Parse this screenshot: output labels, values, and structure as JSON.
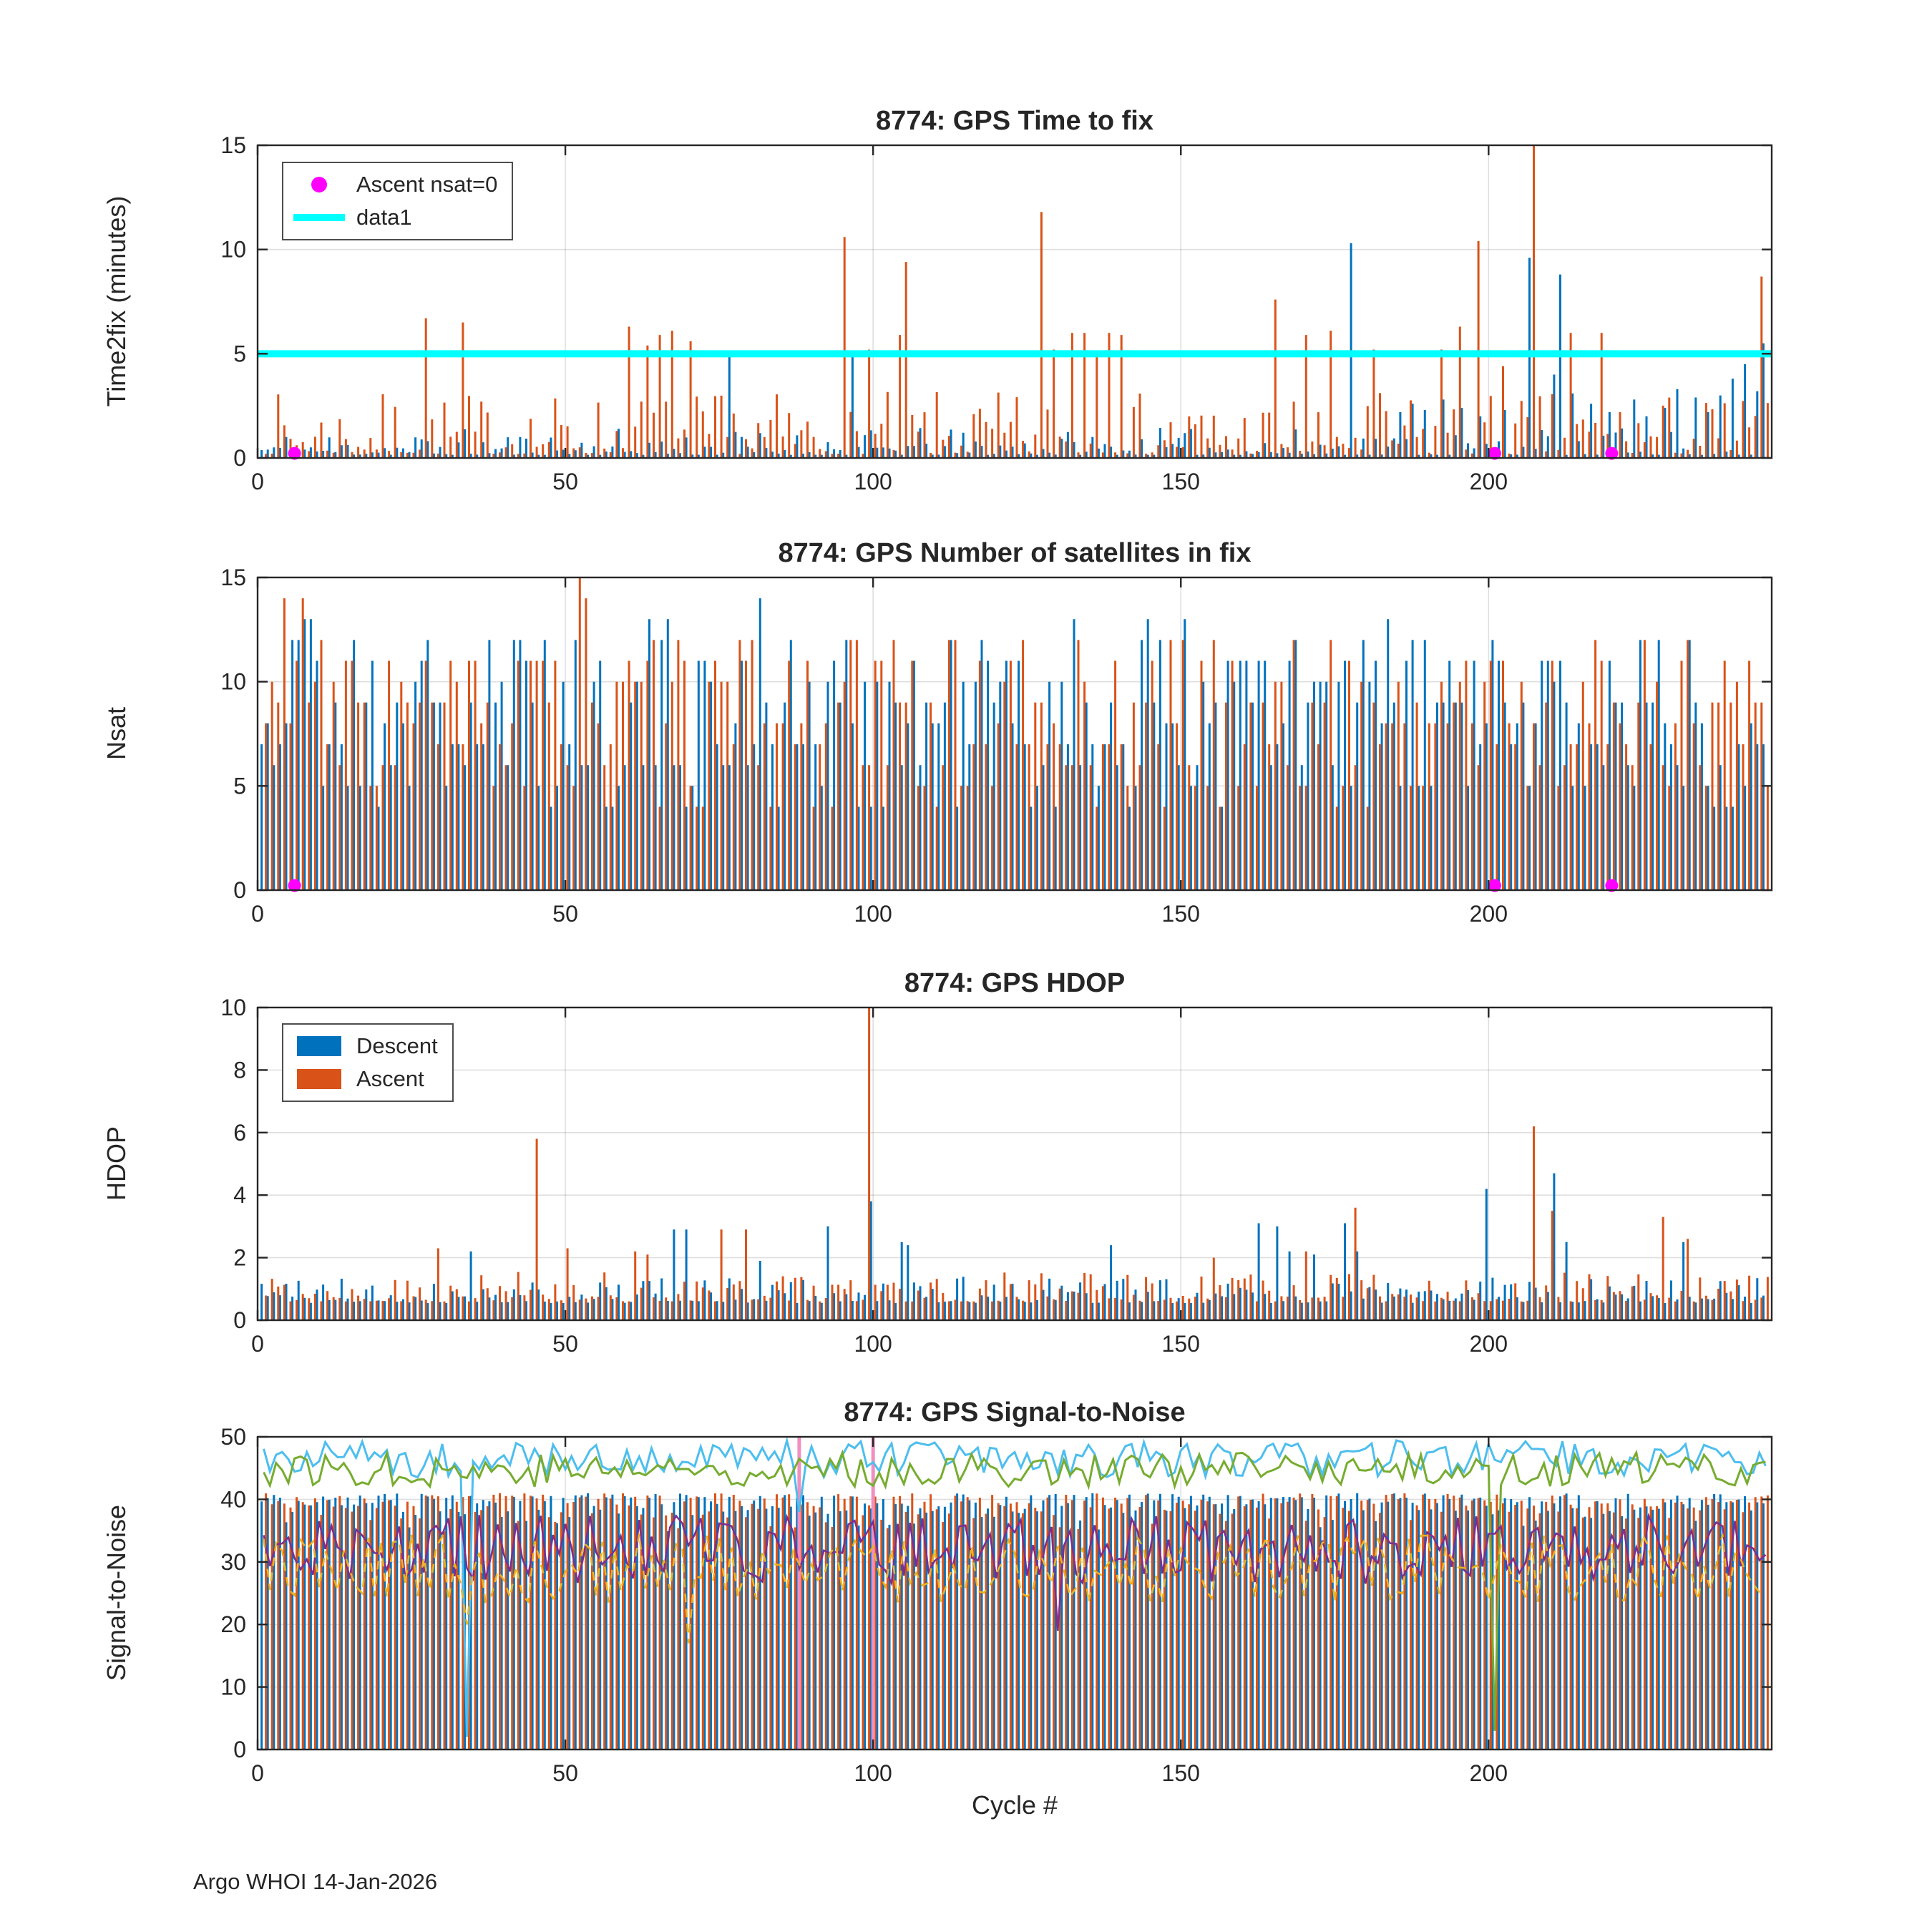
{
  "footer": "Argo WHOI 14-Jan-2026",
  "palette": {
    "descent": "#0072BD",
    "ascent": "#D95319",
    "reference": "#00FFFF",
    "flag_marker": "#FF00FF",
    "snr_cyan": "#4DBEEE",
    "snr_olive": "#77AC30",
    "snr_purple": "#7E2F8E",
    "snr_yellow": "#EDB120",
    "snr_pink": "#F08FC0"
  },
  "chart_data": [
    {
      "type": "bar",
      "title": "8774: GPS Time to fix",
      "ylabel": "Time2fix (minutes)",
      "xlabel": "",
      "xlim": [
        0,
        246
      ],
      "ylim": [
        0,
        15
      ],
      "xticks": [
        0,
        50,
        100,
        150,
        200
      ],
      "yticks": [
        0,
        5,
        10,
        15
      ],
      "grid": true,
      "legend": {
        "position": "top-left",
        "items": [
          {
            "label": "Ascent nsat=0",
            "swatch": "marker",
            "color": "#FF00FF"
          },
          {
            "label": "data1",
            "swatch": "line",
            "color": "#00FFFF"
          }
        ]
      },
      "refline": {
        "y": 5,
        "label": "data1",
        "color": "#00FFFF",
        "width": 10
      },
      "stems": [
        {
          "name": "Descent",
          "color": "#0072BD",
          "dx": -3,
          "w": 3,
          "seed": 11,
          "n": 245,
          "base": 0.15,
          "amp": 1.3,
          "pow": 2.6,
          "spikes": [
            [
              77,
              5.0
            ],
            [
              97,
              4.9
            ],
            [
              178,
              10.3
            ],
            [
              186,
              2.2
            ],
            [
              188,
              2.6
            ],
            [
              190,
              2.3
            ],
            [
              193,
              2.8
            ],
            [
              196,
              2.4
            ],
            [
              199,
              2.0
            ],
            [
              203,
              2.3
            ],
            [
              207,
              9.6
            ],
            [
              211,
              4.0
            ],
            [
              212,
              8.8
            ],
            [
              214,
              3.1
            ],
            [
              217,
              2.6
            ],
            [
              220,
              2.2
            ],
            [
              224,
              2.8
            ],
            [
              226,
              2.0
            ],
            [
              229,
              2.4
            ],
            [
              231,
              3.3
            ],
            [
              234,
              2.9
            ],
            [
              236,
              2.2
            ],
            [
              238,
              3.0
            ],
            [
              240,
              3.8
            ],
            [
              242,
              4.5
            ],
            [
              244,
              3.2
            ],
            [
              245,
              5.5
            ]
          ]
        },
        {
          "name": "Ascent",
          "color": "#D95319",
          "dx": 3,
          "w": 3,
          "seed": 7,
          "n": 245,
          "base": 0.2,
          "amp": 3.0,
          "pow": 2.2,
          "spikes": [
            [
              27,
              6.7
            ],
            [
              33,
              6.5
            ],
            [
              60,
              6.3
            ],
            [
              63,
              5.4
            ],
            [
              65,
              5.9
            ],
            [
              67,
              6.1
            ],
            [
              70,
              5.6
            ],
            [
              95,
              10.6
            ],
            [
              99,
              5.2
            ],
            [
              104,
              5.9
            ],
            [
              105,
              9.4
            ],
            [
              127,
              11.8
            ],
            [
              129,
              5.2
            ],
            [
              132,
              6.0
            ],
            [
              134,
              6.0
            ],
            [
              136,
              5.0
            ],
            [
              138,
              6.0
            ],
            [
              140,
              5.9
            ],
            [
              165,
              7.6
            ],
            [
              170,
              5.9
            ],
            [
              174,
              6.1
            ],
            [
              181,
              5.2
            ],
            [
              192,
              5.2
            ],
            [
              195,
              6.3
            ],
            [
              198,
              10.4
            ],
            [
              202,
              4.4
            ],
            [
              207,
              15.2
            ],
            [
              213,
              6.0
            ],
            [
              218,
              6.0
            ],
            [
              244,
              8.7
            ]
          ]
        }
      ],
      "markers": {
        "label": "Ascent nsat=0",
        "color": "#FF00FF",
        "points": [
          [
            6,
            0.22
          ],
          [
            201,
            0.22
          ],
          [
            220,
            0.22
          ]
        ]
      }
    },
    {
      "type": "bar",
      "title": "8774: GPS Number of satellites in fix",
      "ylabel": "Nsat",
      "xlabel": "",
      "xlim": [
        0,
        246
      ],
      "ylim": [
        0,
        15
      ],
      "xticks": [
        0,
        50,
        100,
        150,
        200
      ],
      "yticks": [
        0,
        5,
        10,
        15
      ],
      "grid": true,
      "stems": [
        {
          "name": "Descent",
          "color": "#0072BD",
          "dx": -3,
          "w": 3,
          "seed": 21,
          "n": 245,
          "base": 4,
          "amp": 9,
          "pow": 1.15,
          "round": 1,
          "spikes": [
            [
              8,
              13
            ],
            [
              9,
              13
            ],
            [
              47,
              12
            ],
            [
              52,
              12
            ],
            [
              82,
              14
            ],
            [
              118,
              12
            ],
            [
              151,
              13
            ],
            [
              160,
              11
            ]
          ]
        },
        {
          "name": "Ascent",
          "color": "#D95319",
          "dx": 3,
          "w": 3,
          "seed": 33,
          "n": 245,
          "base": 4,
          "amp": 8,
          "pow": 1.0,
          "round": 1,
          "spikes": [
            [
              4,
              14
            ],
            [
              7,
              14
            ],
            [
              52,
              15
            ],
            [
              53,
              14
            ],
            [
              196,
              11
            ],
            [
              217,
              12
            ],
            [
              225,
              12
            ],
            [
              232,
              12
            ],
            [
              238,
              11
            ]
          ]
        }
      ],
      "markers": {
        "label": "Ascent nsat=0",
        "color": "#FF00FF",
        "points": [
          [
            6,
            0.22
          ],
          [
            201,
            0.22
          ],
          [
            220,
            0.22
          ]
        ]
      }
    },
    {
      "type": "bar",
      "title": "8774: GPS HDOP",
      "ylabel": "HDOP",
      "xlabel": "",
      "xlim": [
        0,
        246
      ],
      "ylim": [
        0,
        10
      ],
      "xticks": [
        0,
        50,
        100,
        150,
        200
      ],
      "yticks": [
        0,
        2,
        4,
        6,
        8,
        10
      ],
      "grid": true,
      "legend": {
        "position": "top-left",
        "items": [
          {
            "label": "Descent",
            "swatch": "patch",
            "color": "#0072BD"
          },
          {
            "label": "Ascent",
            "swatch": "patch",
            "color": "#D95319"
          }
        ]
      },
      "stems": [
        {
          "name": "Descent",
          "color": "#0072BD",
          "dx": -3,
          "w": 3,
          "seed": 41,
          "n": 245,
          "base": 0.55,
          "amp": 0.85,
          "pow": 2.0,
          "spikes": [
            [
              35,
              2.2
            ],
            [
              68,
              2.9
            ],
            [
              70,
              2.9
            ],
            [
              82,
              1.9
            ],
            [
              93,
              3.0
            ],
            [
              100,
              3.8
            ],
            [
              105,
              2.5
            ],
            [
              106,
              2.4
            ],
            [
              139,
              2.4
            ],
            [
              163,
              3.1
            ],
            [
              166,
              3.0
            ],
            [
              168,
              2.2
            ],
            [
              172,
              2.1
            ],
            [
              177,
              3.1
            ],
            [
              179,
              2.2
            ],
            [
              200,
              4.2
            ],
            [
              211,
              4.7
            ],
            [
              213,
              2.5
            ],
            [
              232,
              2.5
            ]
          ]
        },
        {
          "name": "Ascent",
          "color": "#D95319",
          "dx": 3,
          "w": 3,
          "seed": 55,
          "n": 245,
          "base": 0.6,
          "amp": 0.95,
          "pow": 2.0,
          "spikes": [
            [
              29,
              2.3
            ],
            [
              45,
              5.8
            ],
            [
              50,
              2.3
            ],
            [
              61,
              2.2
            ],
            [
              63,
              2.1
            ],
            [
              75,
              2.9
            ],
            [
              79,
              2.9
            ],
            [
              99,
              12.0
            ],
            [
              155,
              2.0
            ],
            [
              170,
              2.2
            ],
            [
              178,
              3.6
            ],
            [
              207,
              6.2
            ],
            [
              210,
              3.5
            ],
            [
              228,
              3.3
            ],
            [
              232,
              2.6
            ]
          ]
        }
      ]
    },
    {
      "type": "bar",
      "title": "8774: GPS Signal-to-Noise",
      "ylabel": "Signal-to-Noise",
      "xlabel": "Cycle #",
      "xlim": [
        0,
        246
      ],
      "ylim": [
        0,
        50
      ],
      "xticks": [
        0,
        50,
        100,
        150,
        200
      ],
      "yticks": [
        0,
        10,
        20,
        30,
        40,
        50
      ],
      "grid": true,
      "stems": [
        {
          "name": "Descent SNR bars",
          "color": "#0072BD",
          "dx": -3,
          "w": 3,
          "seed": 61,
          "n": 245,
          "base": 34,
          "amp": 7,
          "pow": 0.35,
          "spikes": []
        },
        {
          "name": "Ascent SNR bars",
          "color": "#D95319",
          "dx": 3,
          "w": 3,
          "seed": 67,
          "n": 245,
          "base": 34,
          "amp": 7,
          "pow": 0.35,
          "spikes": []
        },
        {
          "name": "Flagged cycles",
          "color": "#F08FC0",
          "dx": 0,
          "w": 5,
          "points": [
            [
              88,
              50
            ],
            [
              100,
              50
            ]
          ]
        }
      ],
      "lines": [
        {
          "name": "Max SNR descent",
          "color": "#4DBEEE",
          "w": 3,
          "seed": 71,
          "n": 245,
          "base": 43.5,
          "amp": 6.0,
          "pow": 1,
          "spikes": [
            [
              34,
              2
            ],
            [
              88,
              38
            ]
          ]
        },
        {
          "name": "Max SNR ascent",
          "color": "#77AC30",
          "w": 3,
          "seed": 77,
          "n": 245,
          "base": 42.0,
          "amp": 5.5,
          "pow": 1,
          "spikes": [
            [
              201,
              3
            ]
          ]
        },
        {
          "name": "Mean SNR",
          "color": "#7E2F8E",
          "w": 2.6,
          "seed": 83,
          "n": 245,
          "base": 26.5,
          "amp": 11.0,
          "pow": 1,
          "spikes": [
            [
              130,
              19
            ]
          ]
        },
        {
          "name": "Min SNR",
          "color": "#EDB120",
          "w": 2.6,
          "dash": "12 9",
          "seed": 89,
          "n": 245,
          "base": 23.5,
          "amp": 11.0,
          "pow": 1,
          "spikes": [
            [
              34,
              20
            ],
            [
              70,
              17
            ]
          ]
        }
      ]
    }
  ]
}
